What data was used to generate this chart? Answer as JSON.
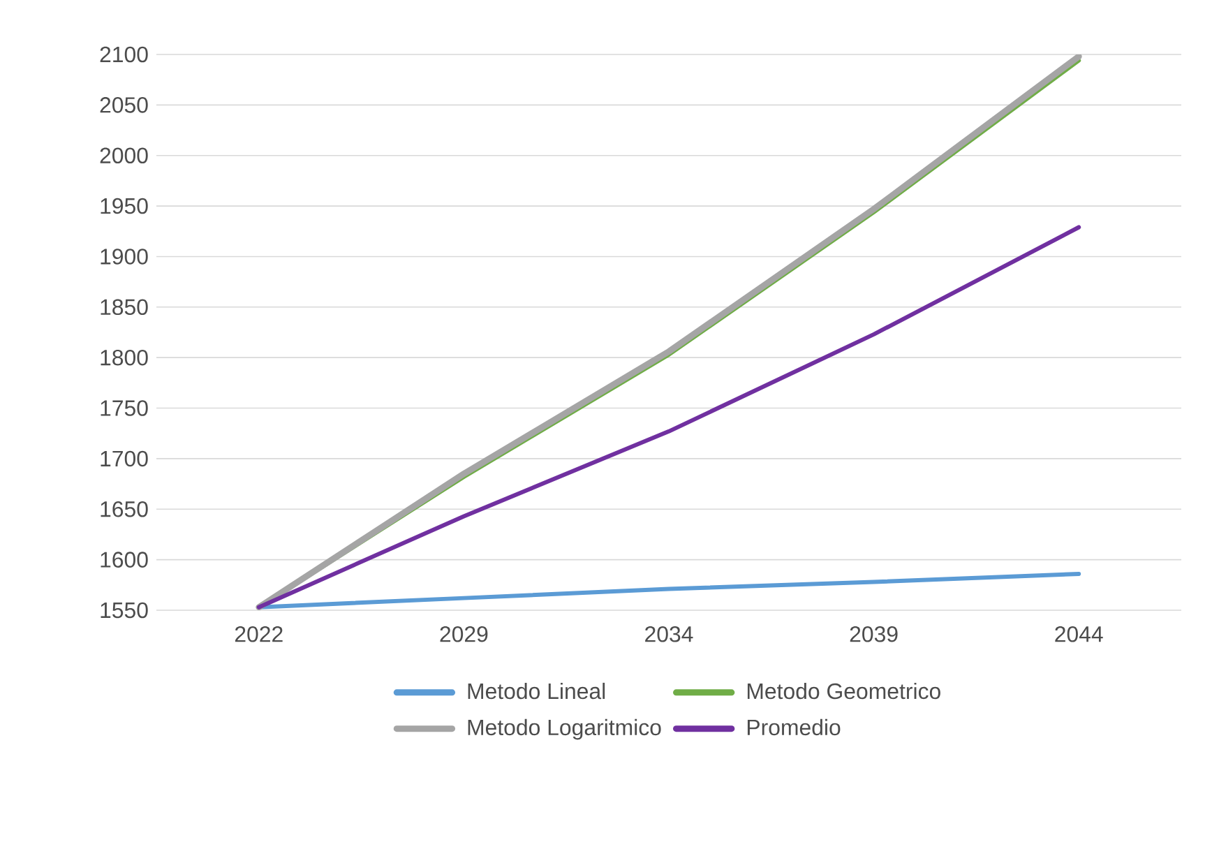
{
  "chart_data": {
    "type": "line",
    "categories": [
      "2022",
      "2029",
      "2034",
      "2039",
      "2044"
    ],
    "series": [
      {
        "name": "Metodo Lineal",
        "color": "#5b9bd5",
        "values": [
          1553,
          1562,
          1571,
          1578,
          1586
        ]
      },
      {
        "name": "Metodo Geometrico",
        "color": "#70ad47",
        "values": [
          1553,
          1682,
          1803,
          1944,
          2094
        ]
      },
      {
        "name": "Metodo Logaritmico",
        "color": "#a5a5a5",
        "values": [
          1553,
          1685,
          1806,
          1947,
          2098
        ]
      },
      {
        "name": "Promedio",
        "color": "#7030a0",
        "values": [
          1553,
          1643,
          1727,
          1823,
          1929
        ]
      }
    ],
    "ylim": [
      1550,
      2100
    ],
    "yticks": [
      1550,
      1600,
      1650,
      1700,
      1750,
      1800,
      1850,
      1900,
      1950,
      2000,
      2050,
      2100
    ],
    "grid": "y",
    "legend": "bottom",
    "marker": "none",
    "line_style": "solid"
  }
}
